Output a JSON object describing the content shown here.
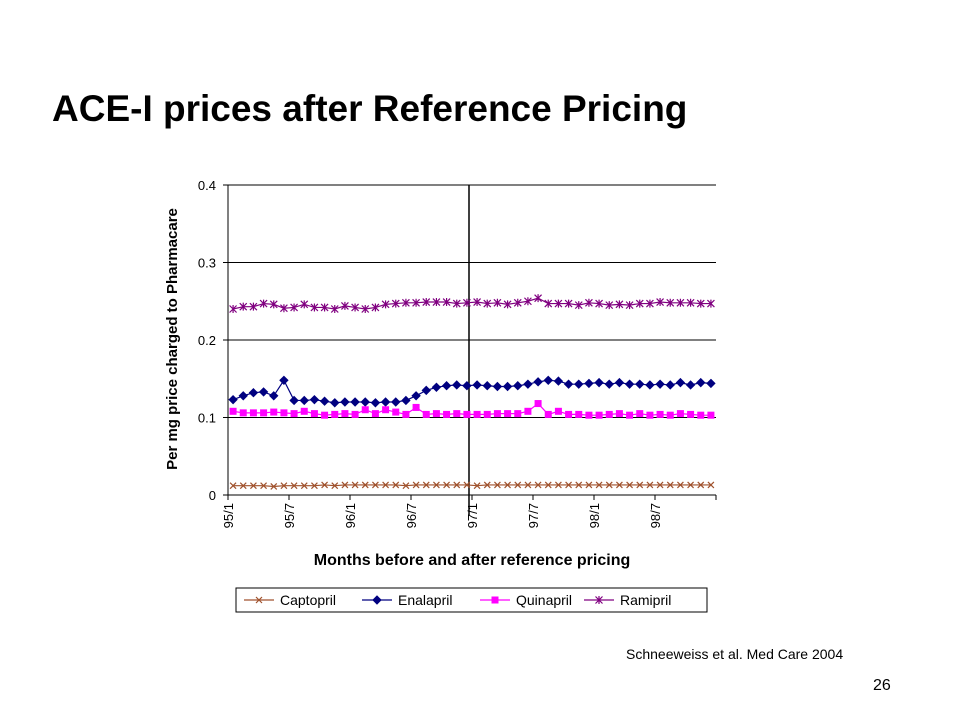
{
  "slide": {
    "title": "ACE-I prices after Reference Pricing",
    "citation": "Schneeweiss et al. Med Care 2004",
    "page_number": "26"
  },
  "chart_data": {
    "type": "line",
    "title": "",
    "xlabel": "Months before and after reference pricing",
    "ylabel": "Per mg price charged to Pharmacare",
    "ylim": [
      0,
      0.4
    ],
    "yticks": [
      "0",
      "0.1",
      "0.2",
      "0.3",
      "0.4"
    ],
    "ytick_values": [
      0,
      0.1,
      0.2,
      0.3,
      0.4
    ],
    "xtick_labels": [
      "95/1",
      "95/7",
      "96/1",
      "96/7",
      "97/1",
      "97/7",
      "98/1",
      "98/7"
    ],
    "xtick_positions": [
      0,
      6,
      12,
      18,
      24,
      30,
      36,
      42
    ],
    "num_months": 48,
    "vertical_marker_at": 24,
    "grid": "horizontal",
    "legend_position": "bottom",
    "series": [
      {
        "name": "Captopril",
        "color": "#A0522D",
        "marker": "x",
        "values": [
          0.012,
          0.012,
          0.012,
          0.012,
          0.011,
          0.012,
          0.012,
          0.012,
          0.012,
          0.013,
          0.012,
          0.013,
          0.013,
          0.013,
          0.013,
          0.013,
          0.013,
          0.012,
          0.013,
          0.013,
          0.013,
          0.013,
          0.013,
          0.013,
          0.012,
          0.013,
          0.013,
          0.013,
          0.013,
          0.013,
          0.013,
          0.013,
          0.013,
          0.013,
          0.013,
          0.013,
          0.013,
          0.013,
          0.013,
          0.013,
          0.013,
          0.013,
          0.013,
          0.013,
          0.013,
          0.013,
          0.013,
          0.013
        ]
      },
      {
        "name": "Enalapril",
        "color": "#000080",
        "marker": "diamond",
        "values": [
          0.123,
          0.128,
          0.132,
          0.133,
          0.128,
          0.148,
          0.122,
          0.122,
          0.123,
          0.121,
          0.119,
          0.12,
          0.12,
          0.12,
          0.119,
          0.12,
          0.12,
          0.122,
          0.128,
          0.135,
          0.139,
          0.141,
          0.142,
          0.141,
          0.142,
          0.141,
          0.14,
          0.14,
          0.141,
          0.143,
          0.146,
          0.148,
          0.147,
          0.143,
          0.143,
          0.144,
          0.145,
          0.143,
          0.145,
          0.143,
          0.143,
          0.142,
          0.143,
          0.142,
          0.145,
          0.142,
          0.145,
          0.144
        ]
      },
      {
        "name": "Quinapril",
        "color": "#FF00FF",
        "marker": "square",
        "values": [
          0.108,
          0.106,
          0.106,
          0.106,
          0.107,
          0.106,
          0.105,
          0.108,
          0.105,
          0.103,
          0.104,
          0.105,
          0.104,
          0.11,
          0.105,
          0.11,
          0.107,
          0.104,
          0.113,
          0.104,
          0.105,
          0.104,
          0.105,
          0.104,
          0.104,
          0.104,
          0.105,
          0.105,
          0.105,
          0.108,
          0.118,
          0.104,
          0.108,
          0.104,
          0.104,
          0.103,
          0.103,
          0.104,
          0.105,
          0.103,
          0.105,
          0.103,
          0.104,
          0.103,
          0.105,
          0.104,
          0.103,
          0.103
        ]
      },
      {
        "name": "Ramipril",
        "color": "#800080",
        "marker": "asterisk",
        "values": [
          0.24,
          0.243,
          0.243,
          0.247,
          0.246,
          0.241,
          0.242,
          0.246,
          0.242,
          0.242,
          0.24,
          0.244,
          0.242,
          0.24,
          0.242,
          0.246,
          0.247,
          0.248,
          0.248,
          0.249,
          0.249,
          0.249,
          0.247,
          0.248,
          0.249,
          0.247,
          0.248,
          0.246,
          0.248,
          0.25,
          0.254,
          0.247,
          0.247,
          0.247,
          0.245,
          0.248,
          0.247,
          0.245,
          0.246,
          0.245,
          0.247,
          0.247,
          0.249,
          0.248,
          0.248,
          0.248,
          0.247,
          0.247
        ]
      }
    ]
  }
}
